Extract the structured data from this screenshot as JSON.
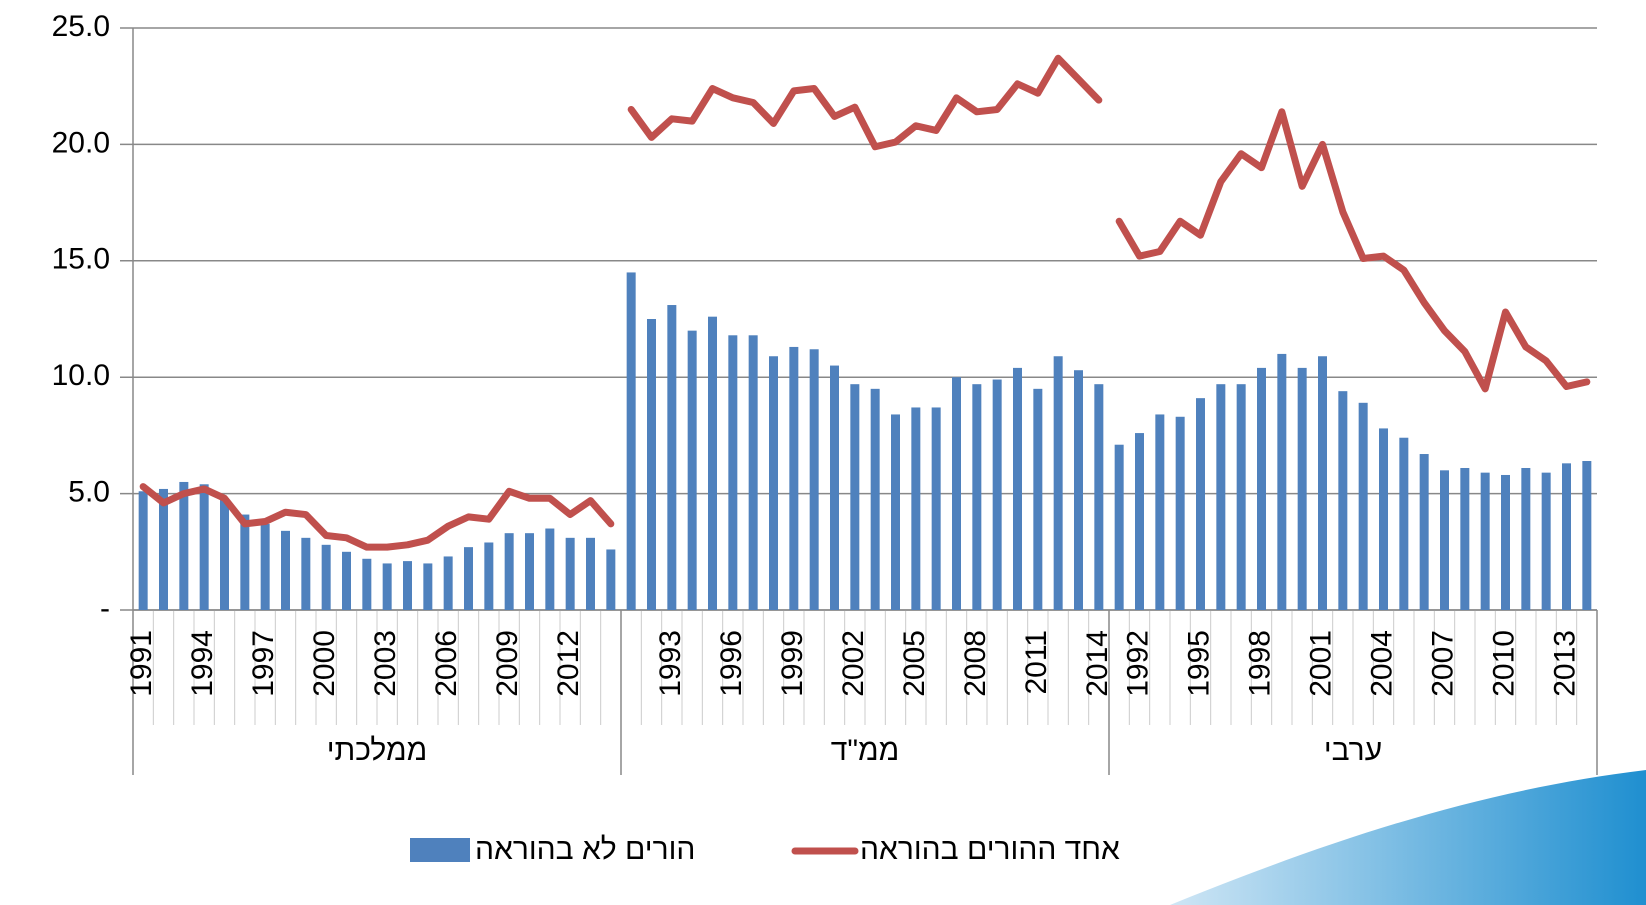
{
  "chart_data": {
    "type": "bar_line",
    "yticks": [
      {
        "value": 0,
        "label": "-"
      },
      {
        "value": 5,
        "label": "5.0"
      },
      {
        "value": 10,
        "label": "10.0"
      },
      {
        "value": 15,
        "label": "15.0"
      },
      {
        "value": 20,
        "label": "20.0"
      },
      {
        "value": 25,
        "label": "25.0"
      }
    ],
    "ylim": [
      0,
      25
    ],
    "grid": true,
    "groups": [
      {
        "label": "ממלכתי",
        "categories": [
          "1991",
          null,
          null,
          "1994",
          null,
          null,
          "1997",
          null,
          null,
          "2000",
          null,
          null,
          "2003",
          null,
          null,
          "2006",
          null,
          null,
          "2009",
          null,
          null,
          "2012",
          null,
          null
        ]
      },
      {
        "label": "ממ\"ד",
        "categories": [
          null,
          null,
          "1993",
          null,
          null,
          "1996",
          null,
          null,
          "1999",
          null,
          null,
          "2002",
          null,
          null,
          "2005",
          null,
          null,
          "2008",
          null,
          null,
          "2011",
          null,
          null,
          "2014"
        ]
      },
      {
        "label": "ערבי",
        "categories": [
          null,
          "1992",
          null,
          null,
          "1995",
          null,
          null,
          "1998",
          null,
          null,
          "2001",
          null,
          null,
          "2004",
          null,
          null,
          "2007",
          null,
          null,
          "2010",
          null,
          null,
          "2013",
          null
        ]
      }
    ],
    "series": [
      {
        "name": "הורים לא בהוראה",
        "type": "bar",
        "color": "#4f81bd",
        "values": [
          5.1,
          5.2,
          5.5,
          5.4,
          4.8,
          4.1,
          3.7,
          3.4,
          3.1,
          2.8,
          2.5,
          2.2,
          2.0,
          2.1,
          2.0,
          2.3,
          2.7,
          2.9,
          3.3,
          3.3,
          3.5,
          3.1,
          3.1,
          2.6,
          14.5,
          12.5,
          13.1,
          12.0,
          12.6,
          11.8,
          11.8,
          10.9,
          11.3,
          11.2,
          10.5,
          9.7,
          9.5,
          8.4,
          8.7,
          8.7,
          10.0,
          9.7,
          9.9,
          10.4,
          9.5,
          10.9,
          10.3,
          9.7,
          7.1,
          7.6,
          8.4,
          8.3,
          9.1,
          9.7,
          9.7,
          10.4,
          11.0,
          10.4,
          10.9,
          9.4,
          8.9,
          7.8,
          7.4,
          6.7,
          6.0,
          6.1,
          5.9,
          5.8,
          6.1,
          5.9,
          6.3,
          6.4
        ]
      },
      {
        "name": "אחד ההורים בהוראה",
        "type": "line",
        "color": "#c0504d",
        "values": [
          5.3,
          4.6,
          5.0,
          5.2,
          4.8,
          3.7,
          3.8,
          4.2,
          4.1,
          3.2,
          3.1,
          2.7,
          2.7,
          2.8,
          3.0,
          3.6,
          4.0,
          3.9,
          5.1,
          4.8,
          4.8,
          4.1,
          4.7,
          3.7,
          21.5,
          20.3,
          21.1,
          21.0,
          22.4,
          22.0,
          21.8,
          20.9,
          22.3,
          22.4,
          21.2,
          21.6,
          19.9,
          20.1,
          20.8,
          20.6,
          22.0,
          21.4,
          21.5,
          22.6,
          22.2,
          23.7,
          22.8,
          21.9,
          16.7,
          15.2,
          15.4,
          16.7,
          16.1,
          18.4,
          19.6,
          19.0,
          21.4,
          18.2,
          20.0,
          17.1,
          15.1,
          15.2,
          14.6,
          13.2,
          12.0,
          11.1,
          9.5,
          12.8,
          11.3,
          10.7,
          9.6,
          9.8
        ]
      }
    ]
  }
}
